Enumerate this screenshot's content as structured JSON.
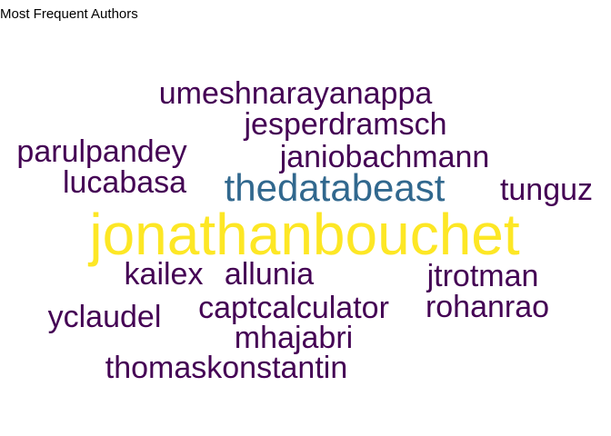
{
  "title": "Most Frequent Authors",
  "chart_data": {
    "type": "wordcloud",
    "title": "Most Frequent Authors",
    "words": [
      {
        "text": "jonathanbouchet",
        "weight": 100,
        "color": "#fde725"
      },
      {
        "text": "thedatabeast",
        "weight": 55,
        "color": "#31688e"
      },
      {
        "text": "umeshnarayanappa",
        "weight": 30,
        "color": "#440154"
      },
      {
        "text": "jesperdramsch",
        "weight": 30,
        "color": "#440154"
      },
      {
        "text": "parulpandey",
        "weight": 30,
        "color": "#440154"
      },
      {
        "text": "janiobachmann",
        "weight": 30,
        "color": "#440154"
      },
      {
        "text": "lucabasa",
        "weight": 30,
        "color": "#440154"
      },
      {
        "text": "tunguz",
        "weight": 30,
        "color": "#440154"
      },
      {
        "text": "kailex",
        "weight": 30,
        "color": "#440154"
      },
      {
        "text": "allunia",
        "weight": 30,
        "color": "#440154"
      },
      {
        "text": "jtrotman",
        "weight": 30,
        "color": "#440154"
      },
      {
        "text": "captcalculator",
        "weight": 30,
        "color": "#440154"
      },
      {
        "text": "rohanrao",
        "weight": 30,
        "color": "#440154"
      },
      {
        "text": "yclaudel",
        "weight": 30,
        "color": "#440154"
      },
      {
        "text": "mhajabri",
        "weight": 30,
        "color": "#440154"
      },
      {
        "text": "thomaskonstantin",
        "weight": 30,
        "color": "#440154"
      }
    ]
  }
}
